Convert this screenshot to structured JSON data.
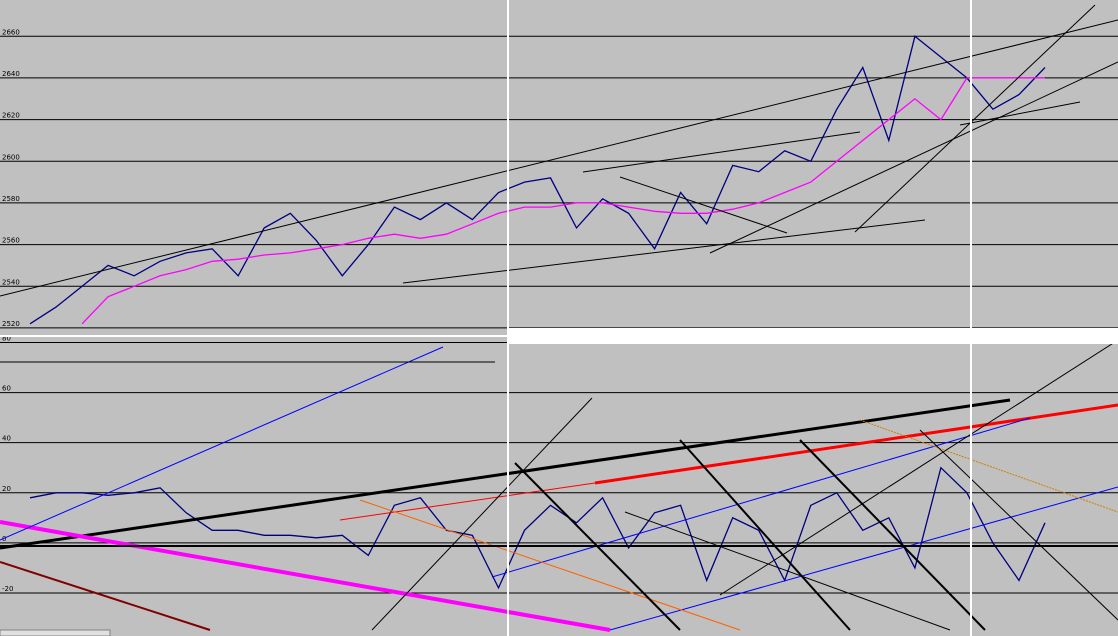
{
  "chart_data": [
    {
      "type": "line",
      "ylim": [
        2519,
        2675
      ],
      "yticks": [
        2520,
        2540,
        2560,
        2580,
        2600,
        2620,
        2640,
        2660
      ],
      "grid": true,
      "categories": [
        null,
        null,
        null,
        null,
        null,
        null,
        null,
        null,
        null,
        null,
        null,
        null,
        null,
        null,
        null,
        null,
        null,
        null,
        null,
        null,
        null,
        null,
        null,
        null,
        null,
        null,
        null,
        null,
        null,
        null,
        null,
        null,
        null,
        null,
        null,
        null,
        null,
        null,
        null,
        null
      ],
      "series": [
        {
          "color": "#000080",
          "values": [
            2522,
            2530,
            2540,
            2550,
            2545,
            2552,
            2556,
            2558,
            2545,
            2568,
            2575,
            2562,
            2545,
            2560,
            2578,
            2572,
            2580,
            2572,
            2585,
            2590,
            2592,
            2568,
            2582,
            2575,
            2558,
            2585,
            2570,
            2598,
            2595,
            2605,
            2600,
            2625,
            2645,
            2610,
            2660,
            2650,
            2640,
            2625,
            2632,
            2645
          ]
        },
        {
          "color": "#ff00ff",
          "values": [
            null,
            null,
            2522,
            2535,
            2540,
            2545,
            2548,
            2552,
            2553,
            2555,
            2556,
            2558,
            2560,
            2563,
            2565,
            2563,
            2565,
            2570,
            2575,
            2578,
            2578,
            2580,
            2580,
            2578,
            2576,
            2575,
            2575,
            2577,
            2580,
            2585,
            2590,
            2600,
            2610,
            2620,
            2630,
            2620,
            2640,
            2640,
            2640,
            2640
          ]
        }
      ]
    },
    {
      "type": "line",
      "ylim": [
        -34,
        81
      ],
      "yticks": [
        -20,
        0,
        20,
        40,
        60,
        80
      ],
      "grid": true,
      "categories": [
        null,
        null,
        null,
        null,
        null,
        null,
        null,
        null,
        null,
        null,
        null,
        null,
        null,
        null,
        null,
        null,
        null,
        null,
        null,
        null,
        null,
        null,
        null,
        null,
        null,
        null,
        null,
        null,
        null,
        null,
        null,
        null,
        null,
        null,
        null,
        null,
        null,
        null,
        null,
        null
      ],
      "series": [
        {
          "color": "#000080",
          "values": [
            18,
            20,
            20,
            19,
            20,
            22,
            12,
            5,
            5,
            3,
            3,
            2,
            3,
            -5,
            15,
            18,
            5,
            3,
            -18,
            5,
            15,
            8,
            18,
            -2,
            12,
            15,
            -15,
            10,
            5,
            -15,
            15,
            20,
            5,
            10,
            -10,
            30,
            20,
            0,
            -15,
            8
          ]
        }
      ]
    }
  ]
}
